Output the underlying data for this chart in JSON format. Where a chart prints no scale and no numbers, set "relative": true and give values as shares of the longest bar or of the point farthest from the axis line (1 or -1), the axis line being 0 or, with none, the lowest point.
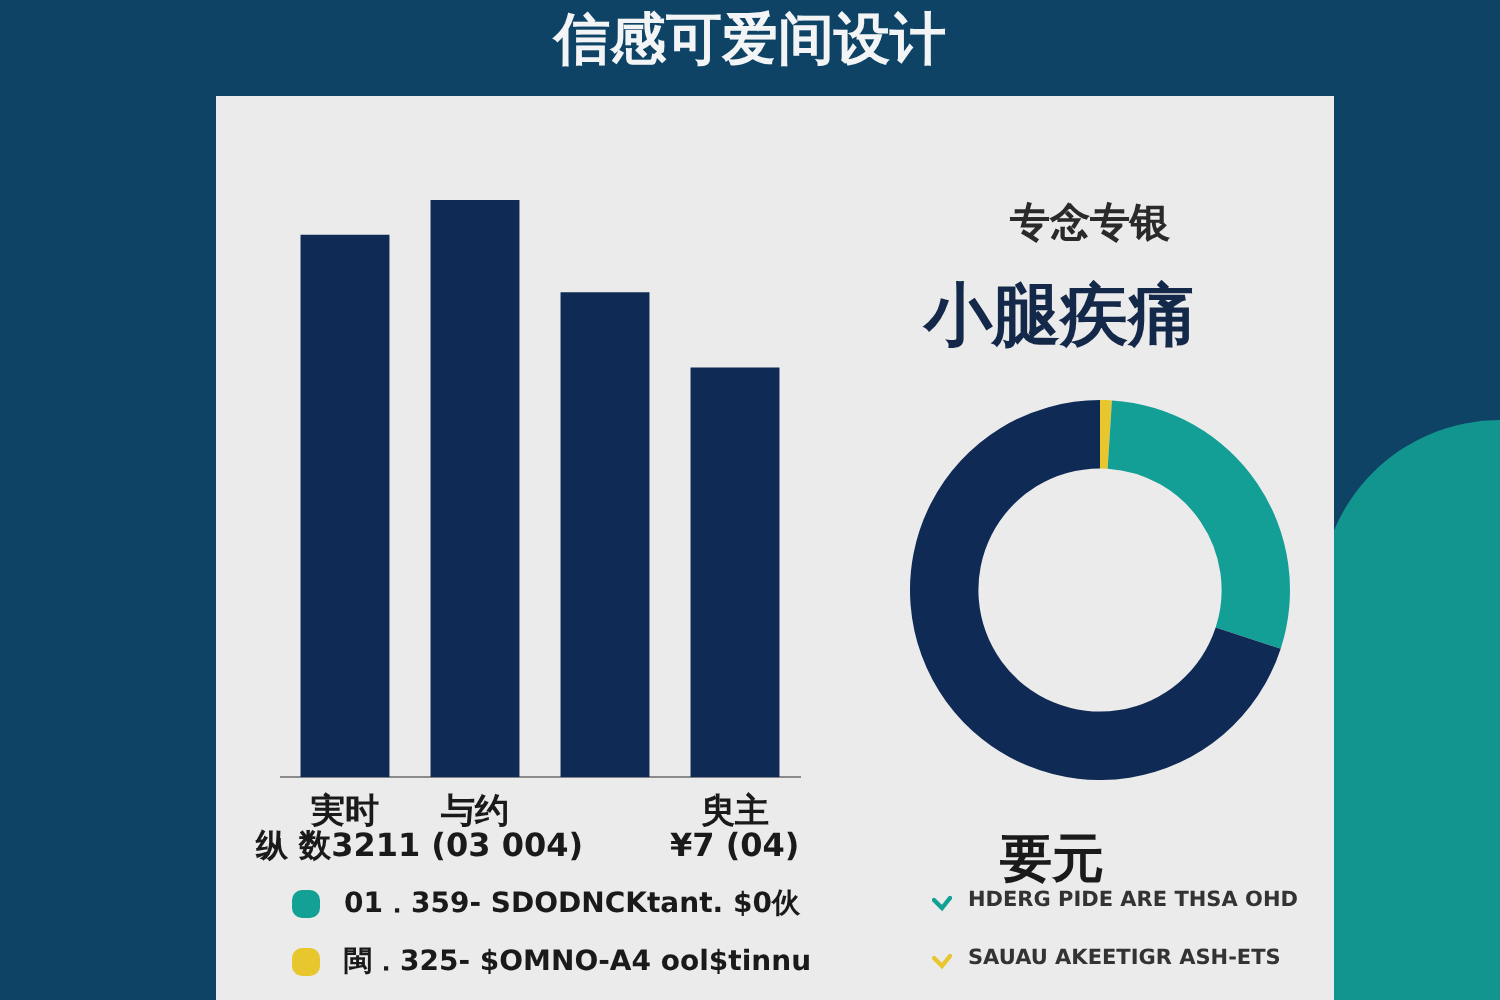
{
  "chart_data": [
    {
      "type": "bar",
      "title": "信感可爱间设计",
      "relative": true,
      "categories": [
        "実时",
        "与约",
        null,
        "臾主"
      ],
      "values": [
        0.94,
        1,
        0.84,
        0.71
      ],
      "color": "#0f2a55",
      "grid": false,
      "legend": false,
      "tick_labels": "x",
      "annotations": [
        "纵 数3211 (03 004)",
        "¥7 (04)",
        "01．359‑ SDODNCKtant. $0伙",
        "閩．325‑ $OMNO‑A4 ool$tinnu"
      ]
    },
    {
      "type": "donut",
      "title": "小腿疾痛",
      "subtitle": "专念专银",
      "categories": [
        null,
        null,
        null
      ],
      "values": [
        1,
        29,
        70
      ],
      "colors": [
        "#e8c62e",
        "#139e96",
        "#0f2a55"
      ],
      "legend": false,
      "annotations": [
        "要元",
        "HDERG PIDE ARE THSA OHD",
        "SAUAU AKEETIGR ASH‑ETS"
      ]
    }
  ]
}
